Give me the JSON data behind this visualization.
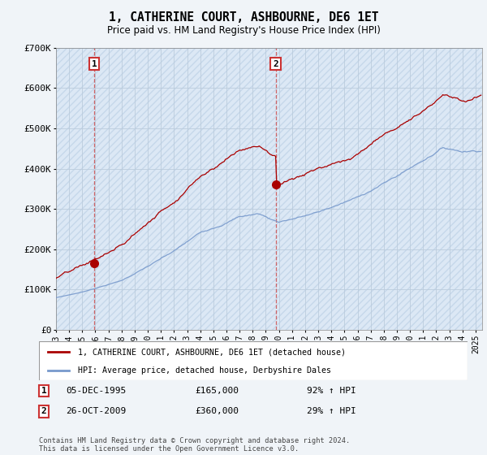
{
  "title": "1, CATHERINE COURT, ASHBOURNE, DE6 1ET",
  "subtitle": "Price paid vs. HM Land Registry's House Price Index (HPI)",
  "ylim": [
    0,
    700000
  ],
  "yticks": [
    0,
    100000,
    200000,
    300000,
    400000,
    500000,
    600000,
    700000
  ],
  "xlim_start": 1993.0,
  "xlim_end": 2025.5,
  "sale1_t": 1995.917,
  "sale1_price": 165000,
  "sale2_t": 2009.75,
  "sale2_price": 360000,
  "legend_red": "1, CATHERINE COURT, ASHBOURNE, DE6 1ET (detached house)",
  "legend_blue": "HPI: Average price, detached house, Derbyshire Dales",
  "annotation1_label": "1",
  "annotation1_date": "05-DEC-1995",
  "annotation1_price": "£165,000",
  "annotation1_hpi": "92% ↑ HPI",
  "annotation2_label": "2",
  "annotation2_date": "26-OCT-2009",
  "annotation2_price": "£360,000",
  "annotation2_hpi": "29% ↑ HPI",
  "footer": "Contains HM Land Registry data © Crown copyright and database right 2024.\nThis data is licensed under the Open Government Licence v3.0.",
  "bg_color": "#f0f4f8",
  "plot_bg_color": "#dce8f5",
  "red_color": "#aa0000",
  "blue_color": "#7799cc",
  "grid_color": "#bbccdd",
  "hatch_fill": "#c8d8e8"
}
